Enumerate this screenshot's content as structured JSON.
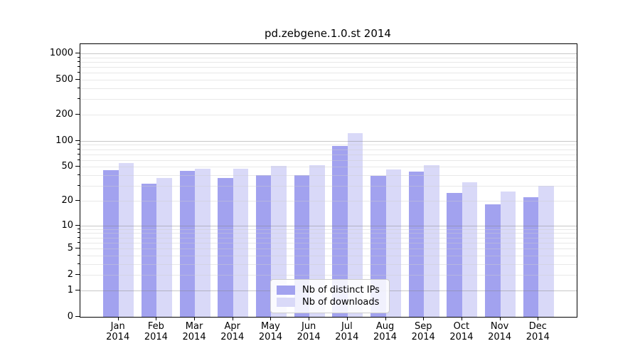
{
  "title": "pd.zebgene.1.0.st 2014",
  "chart_data": {
    "type": "bar",
    "title": "pd.zebgene.1.0.st 2014",
    "categories": [
      "Jan",
      "Feb",
      "Mar",
      "Apr",
      "May",
      "Jun",
      "Jul",
      "Aug",
      "Sep",
      "Oct",
      "Nov",
      "Dec"
    ],
    "x_year_label": "2014",
    "series": [
      {
        "name": "Nb of distinct IPs",
        "color": "#a2a2ef",
        "values": [
          46,
          32,
          45,
          37,
          40,
          40,
          87,
          39,
          44,
          25,
          18,
          22
        ]
      },
      {
        "name": "Nb of downloads",
        "color": "#d9d9f8",
        "values": [
          55,
          37,
          48,
          48,
          51,
          52,
          122,
          47,
          52,
          33,
          26,
          30
        ]
      }
    ],
    "xlabel": "",
    "ylabel": "",
    "y_scale": "log1p",
    "y_ticks": [
      0,
      1,
      2,
      5,
      10,
      20,
      50,
      100,
      200,
      500,
      1000
    ],
    "y_minor_gridlines": [
      3,
      4,
      6,
      7,
      8,
      9,
      30,
      40,
      60,
      70,
      80,
      90,
      300,
      400,
      600,
      700,
      800,
      900
    ],
    "ylim": [
      0,
      1276
    ],
    "grid": true,
    "legend_position": "lower center",
    "axis_color": "#000000",
    "background_color": "#ffffff"
  }
}
